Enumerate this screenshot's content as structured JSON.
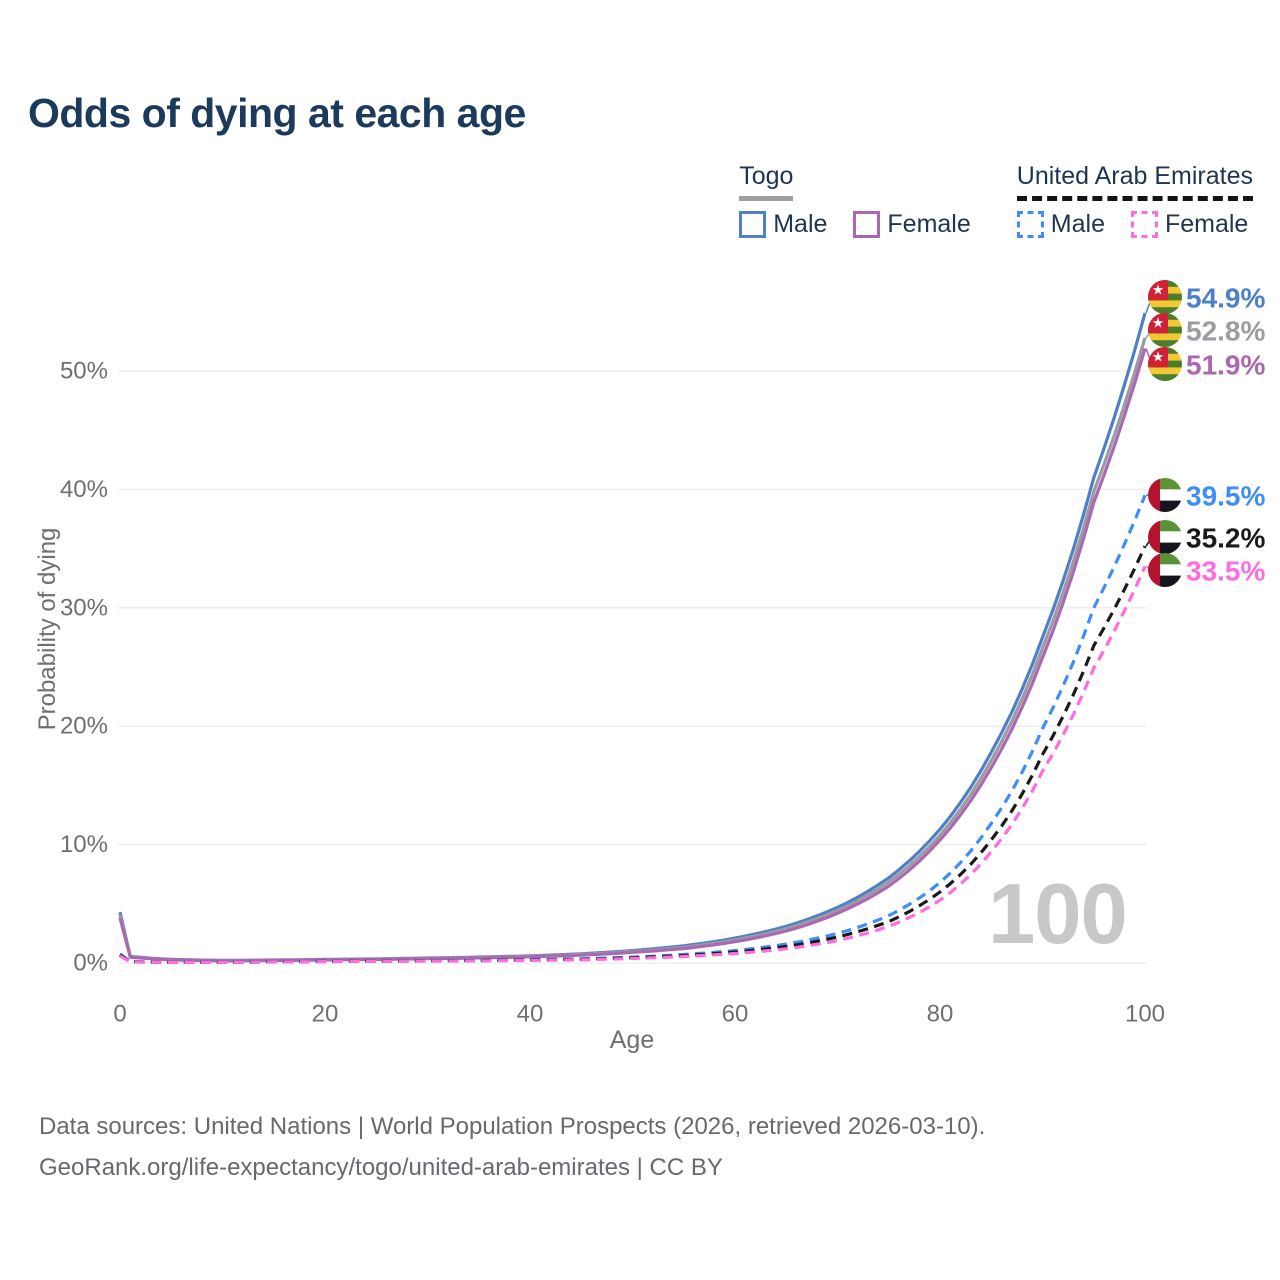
{
  "title": "Odds of dying at each age",
  "legend": {
    "groups": [
      {
        "name": "Togo",
        "underline_style": "solid",
        "underline_color": "#9e9e9e",
        "items": [
          {
            "label": "Male",
            "swatch_color": "#4d80c6",
            "dashed": false
          },
          {
            "label": "Female",
            "swatch_color": "#ab68b2",
            "dashed": false
          }
        ]
      },
      {
        "name": "United Arab Emirates",
        "underline_style": "dashed",
        "underline_color": "#141414",
        "items": [
          {
            "label": "Male",
            "swatch_color": "#3f8df6",
            "dashed": true
          },
          {
            "label": "Female",
            "swatch_color": "#ff6ce0",
            "dashed": true
          }
        ]
      }
    ]
  },
  "watermark": "100",
  "footer": {
    "line1": "Data sources: United Nations | World Population Prospects (2026, retrieved 2026-03-10).",
    "line2": "GeoRank.org/life-expectancy/togo/united-arab-emirates | CC BY"
  },
  "chart_data": {
    "type": "line",
    "title": "Odds of dying at each age",
    "xlabel": "Age",
    "ylabel": "Probability of dying",
    "xlim": [
      0,
      100
    ],
    "ylim": [
      0,
      57
    ],
    "grid": "horizontal",
    "legend_position": "top-right",
    "xticks": [
      {
        "value": 0,
        "label": "0"
      },
      {
        "value": 20,
        "label": "20"
      },
      {
        "value": 40,
        "label": "40"
      },
      {
        "value": 60,
        "label": "60"
      },
      {
        "value": 80,
        "label": "80"
      },
      {
        "value": 100,
        "label": "100"
      }
    ],
    "yticks": [
      {
        "value": 0,
        "label": "0%"
      },
      {
        "value": 10,
        "label": "10%"
      },
      {
        "value": 20,
        "label": "20%"
      },
      {
        "value": 30,
        "label": "30%"
      },
      {
        "value": 40,
        "label": "40%"
      },
      {
        "value": 50,
        "label": "50%"
      }
    ],
    "series": [
      {
        "id": "togo-male",
        "country": "Togo",
        "sex": "Male",
        "color": "#4d80c6",
        "dashed": false,
        "flag": "togo",
        "end_value": 54.9,
        "end_label": "54.9%",
        "points": [
          [
            0,
            4.3
          ],
          [
            1,
            0.55
          ],
          [
            5,
            0.3
          ],
          [
            10,
            0.22
          ],
          [
            15,
            0.25
          ],
          [
            20,
            0.3
          ],
          [
            25,
            0.35
          ],
          [
            30,
            0.42
          ],
          [
            35,
            0.5
          ],
          [
            40,
            0.6
          ],
          [
            45,
            0.78
          ],
          [
            50,
            1.05
          ],
          [
            55,
            1.45
          ],
          [
            60,
            2.1
          ],
          [
            65,
            3.1
          ],
          [
            70,
            4.7
          ],
          [
            75,
            7.2
          ],
          [
            80,
            11.3
          ],
          [
            85,
            17.8
          ],
          [
            90,
            27.5
          ],
          [
            95,
            41.0
          ],
          [
            100,
            54.9
          ]
        ]
      },
      {
        "id": "togo-both",
        "country": "Togo",
        "sex": "Both sexes",
        "color": "#9b9ba1",
        "dashed": false,
        "flag": "togo",
        "end_value": 52.8,
        "end_label": "52.8%",
        "points": [
          [
            0,
            4.05
          ],
          [
            1,
            0.52
          ],
          [
            5,
            0.28
          ],
          [
            10,
            0.2
          ],
          [
            15,
            0.23
          ],
          [
            20,
            0.28
          ],
          [
            25,
            0.33
          ],
          [
            30,
            0.39
          ],
          [
            35,
            0.46
          ],
          [
            40,
            0.56
          ],
          [
            45,
            0.72
          ],
          [
            50,
            0.97
          ],
          [
            55,
            1.33
          ],
          [
            60,
            1.95
          ],
          [
            65,
            2.9
          ],
          [
            70,
            4.45
          ],
          [
            75,
            6.85
          ],
          [
            80,
            10.8
          ],
          [
            85,
            17.1
          ],
          [
            90,
            26.6
          ],
          [
            95,
            39.8
          ],
          [
            100,
            52.8
          ]
        ]
      },
      {
        "id": "togo-female",
        "country": "Togo",
        "sex": "Female",
        "color": "#ab68b2",
        "dashed": false,
        "flag": "togo",
        "end_value": 51.9,
        "end_label": "51.9%",
        "points": [
          [
            0,
            3.8
          ],
          [
            1,
            0.5
          ],
          [
            5,
            0.26
          ],
          [
            10,
            0.18
          ],
          [
            15,
            0.21
          ],
          [
            20,
            0.26
          ],
          [
            25,
            0.3
          ],
          [
            30,
            0.36
          ],
          [
            35,
            0.43
          ],
          [
            40,
            0.52
          ],
          [
            45,
            0.66
          ],
          [
            50,
            0.9
          ],
          [
            55,
            1.22
          ],
          [
            60,
            1.8
          ],
          [
            65,
            2.7
          ],
          [
            70,
            4.2
          ],
          [
            75,
            6.5
          ],
          [
            80,
            10.4
          ],
          [
            85,
            16.5
          ],
          [
            90,
            25.8
          ],
          [
            95,
            38.9
          ],
          [
            100,
            51.9
          ]
        ]
      },
      {
        "id": "uae-male",
        "country": "United Arab Emirates",
        "sex": "Male",
        "color": "#3f8df6",
        "dashed": true,
        "flag": "uae",
        "end_value": 39.5,
        "end_label": "39.5%",
        "points": [
          [
            0,
            0.75
          ],
          [
            1,
            0.12
          ],
          [
            5,
            0.06
          ],
          [
            10,
            0.06
          ],
          [
            15,
            0.12
          ],
          [
            20,
            0.16
          ],
          [
            25,
            0.18
          ],
          [
            30,
            0.2
          ],
          [
            35,
            0.23
          ],
          [
            40,
            0.28
          ],
          [
            45,
            0.35
          ],
          [
            50,
            0.5
          ],
          [
            55,
            0.72
          ],
          [
            60,
            1.05
          ],
          [
            65,
            1.6
          ],
          [
            70,
            2.5
          ],
          [
            75,
            4.0
          ],
          [
            80,
            6.8
          ],
          [
            85,
            11.8
          ],
          [
            90,
            19.8
          ],
          [
            95,
            30.0
          ],
          [
            100,
            39.5
          ]
        ]
      },
      {
        "id": "uae-both",
        "country": "United Arab Emirates",
        "sex": "Both sexes",
        "color": "#1a1a1a",
        "dashed": true,
        "flag": "uae",
        "end_value": 35.2,
        "end_label": "35.2%",
        "points": [
          [
            0,
            0.68
          ],
          [
            1,
            0.11
          ],
          [
            5,
            0.055
          ],
          [
            10,
            0.055
          ],
          [
            15,
            0.1
          ],
          [
            20,
            0.14
          ],
          [
            25,
            0.16
          ],
          [
            30,
            0.18
          ],
          [
            35,
            0.21
          ],
          [
            40,
            0.25
          ],
          [
            45,
            0.31
          ],
          [
            50,
            0.44
          ],
          [
            55,
            0.63
          ],
          [
            60,
            0.92
          ],
          [
            65,
            1.4
          ],
          [
            70,
            2.2
          ],
          [
            75,
            3.5
          ],
          [
            80,
            6.0
          ],
          [
            85,
            10.4
          ],
          [
            90,
            17.6
          ],
          [
            95,
            26.8
          ],
          [
            100,
            35.2
          ]
        ]
      },
      {
        "id": "uae-female",
        "country": "United Arab Emirates",
        "sex": "Female",
        "color": "#ff6ce0",
        "dashed": true,
        "flag": "uae",
        "end_value": 33.5,
        "end_label": "33.5%",
        "points": [
          [
            0,
            0.6
          ],
          [
            1,
            0.1
          ],
          [
            5,
            0.05
          ],
          [
            10,
            0.05
          ],
          [
            15,
            0.09
          ],
          [
            20,
            0.12
          ],
          [
            25,
            0.14
          ],
          [
            30,
            0.16
          ],
          [
            35,
            0.18
          ],
          [
            40,
            0.22
          ],
          [
            45,
            0.27
          ],
          [
            50,
            0.38
          ],
          [
            55,
            0.55
          ],
          [
            60,
            0.8
          ],
          [
            65,
            1.2
          ],
          [
            70,
            1.9
          ],
          [
            75,
            3.1
          ],
          [
            80,
            5.3
          ],
          [
            85,
            9.4
          ],
          [
            90,
            16.2
          ],
          [
            95,
            24.9
          ],
          [
            100,
            33.5
          ]
        ]
      }
    ]
  }
}
